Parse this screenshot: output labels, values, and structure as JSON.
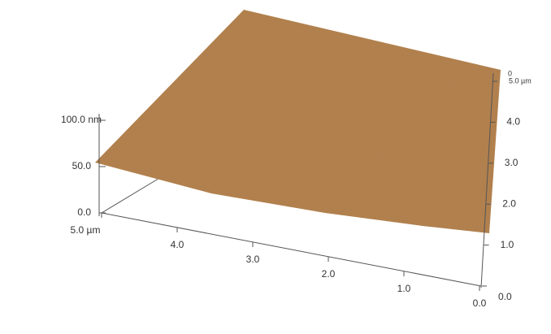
{
  "chart_data": {
    "type": "surface3d",
    "color": "#b5804b",
    "xlim": [
      0,
      5
    ],
    "xticks": [
      {
        "value": 0,
        "label": "0.0"
      },
      {
        "value": 1,
        "label": "1.0"
      },
      {
        "value": 2,
        "label": "2.0"
      },
      {
        "value": 3,
        "label": "3.0"
      },
      {
        "value": 4,
        "label": "4.0"
      },
      {
        "value": 5,
        "label": "5.0 µm"
      }
    ],
    "ylim": [
      0,
      5
    ],
    "yticks": [
      {
        "value": 0,
        "label": "0.0"
      },
      {
        "value": 1,
        "label": "1.0"
      },
      {
        "value": 2,
        "label": "2.0"
      },
      {
        "value": 3,
        "label": "3.0"
      },
      {
        "value": 4,
        "label": "4.0"
      },
      {
        "value": 5,
        "label": "5.0 µm"
      }
    ],
    "zlim": [
      0,
      100
    ],
    "zticks": [
      {
        "value": 0,
        "label": "0.0"
      },
      {
        "value": 50,
        "label": "50.0"
      },
      {
        "value": 100,
        "label": "100.0 nm"
      }
    ],
    "annotations": [
      "0"
    ]
  }
}
